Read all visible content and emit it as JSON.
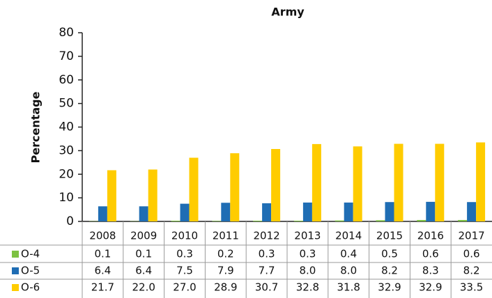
{
  "chart_data": {
    "type": "bar",
    "title": "Army",
    "y_label": "Percentage",
    "categories": [
      "2008",
      "2009",
      "2010",
      "2011",
      "2012",
      "2013",
      "2014",
      "2015",
      "2016",
      "2017"
    ],
    "series": [
      {
        "name": "O-4",
        "color": "#7dc242",
        "values": [
          0.1,
          0.1,
          0.3,
          0.2,
          0.3,
          0.3,
          0.4,
          0.5,
          0.6,
          0.6
        ],
        "value_labels": [
          "0.1",
          "0.1",
          "0.3",
          "0.2",
          "0.3",
          "0.3",
          "0.4",
          "0.5",
          "0.6",
          "0.6"
        ]
      },
      {
        "name": "O-5",
        "color": "#1f6db4",
        "values": [
          6.4,
          6.4,
          7.5,
          7.9,
          7.7,
          8.0,
          8.0,
          8.2,
          8.3,
          8.2
        ],
        "value_labels": [
          "6.4",
          "6.4",
          "7.5",
          "7.9",
          "7.7",
          "8.0",
          "8.0",
          "8.2",
          "8.3",
          "8.2"
        ]
      },
      {
        "name": "O-6",
        "color": "#ffcc00",
        "values": [
          21.7,
          22.0,
          27.0,
          28.9,
          30.7,
          32.8,
          31.8,
          32.9,
          32.9,
          33.5
        ],
        "value_labels": [
          "21.7",
          "22.0",
          "27.0",
          "28.9",
          "30.7",
          "32.8",
          "31.8",
          "32.9",
          "32.9",
          "33.5"
        ]
      }
    ],
    "ylim": [
      0,
      80
    ],
    "yticks": [
      0,
      10,
      20,
      30,
      40,
      50,
      60,
      70,
      80
    ],
    "grid": false
  }
}
